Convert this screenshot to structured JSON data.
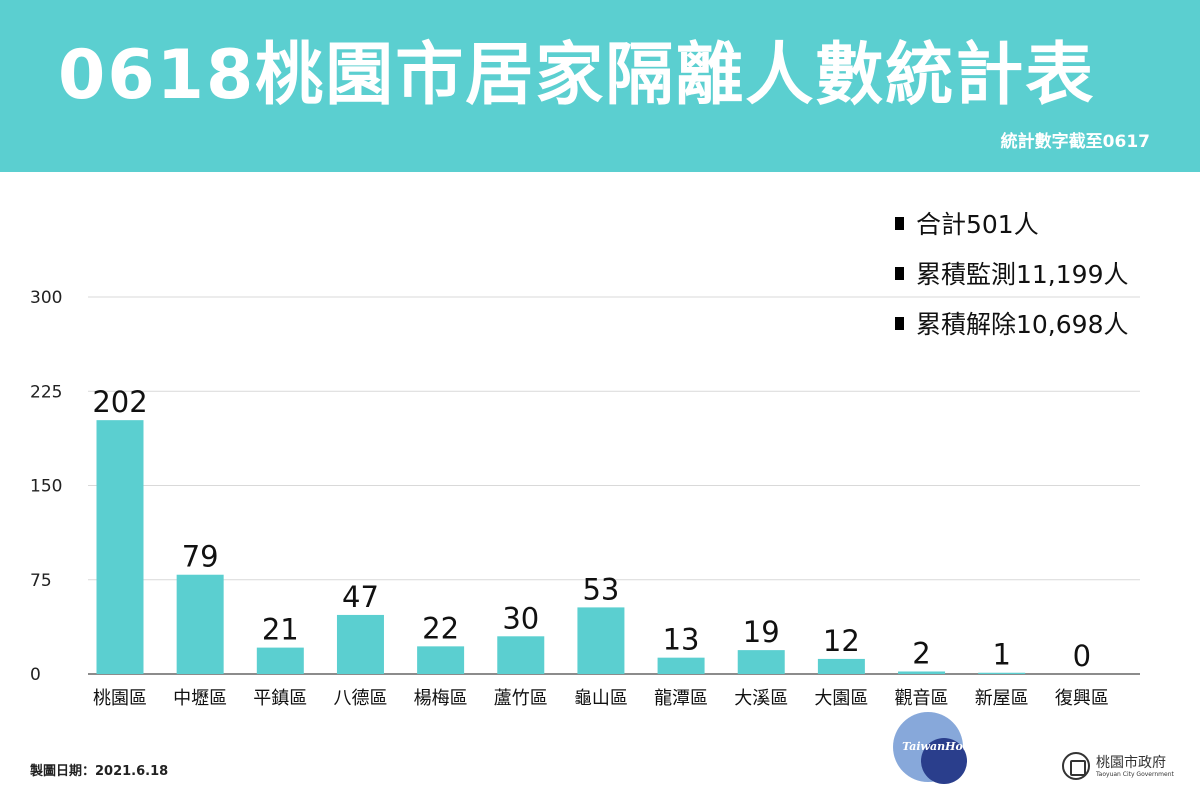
{
  "header": {
    "title": "0618桃園市居家隔離人數統計表",
    "subtitle": "統計數字截至0617",
    "background_color": "#5bcfd0"
  },
  "summary": [
    {
      "label": "合計501人"
    },
    {
      "label": "累積監測11,199人"
    },
    {
      "label": "累積解除10,698人"
    }
  ],
  "footer": {
    "date_label": "製圖日期：2021.6.18"
  },
  "watermark": {
    "text": "TaiwanHot"
  },
  "logo": {
    "name": "桃園市政府",
    "english": "Taoyuan City Government"
  },
  "chart_data": {
    "type": "bar",
    "categories": [
      "桃園區",
      "中壢區",
      "平鎮區",
      "八德區",
      "楊梅區",
      "蘆竹區",
      "龜山區",
      "龍潭區",
      "大溪區",
      "大園區",
      "觀音區",
      "新屋區",
      "復興區"
    ],
    "values": [
      202,
      79,
      21,
      47,
      22,
      30,
      53,
      13,
      19,
      12,
      2,
      1,
      0
    ],
    "ylim": [
      0,
      300
    ],
    "yticks": [
      0,
      75,
      150,
      225,
      300
    ],
    "grid": true,
    "bar_color": "#5bcfd0",
    "title": "",
    "xlabel": "",
    "ylabel": ""
  }
}
